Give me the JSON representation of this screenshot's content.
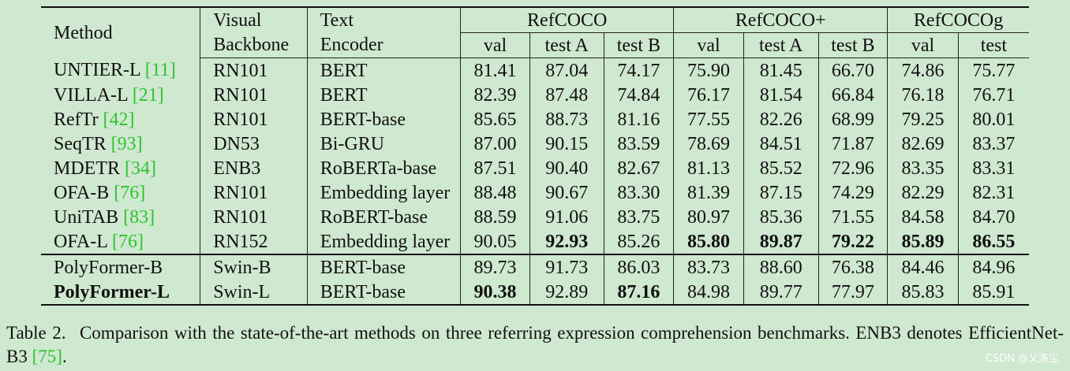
{
  "table": {
    "headers": {
      "method": "Method",
      "visual_line1": "Visual",
      "visual_line2": "Backbone",
      "text_line1": "Text",
      "text_line2": "Encoder",
      "groups": [
        "RefCOCO",
        "RefCOCO+",
        "RefCOCOg"
      ],
      "subcols": [
        "val",
        "test A",
        "test B",
        "val",
        "test A",
        "test B",
        "val",
        "test"
      ]
    },
    "rows": [
      {
        "method": "UNTIER-L",
        "ref": "11",
        "backbone": "RN101",
        "encoder": "BERT",
        "values": [
          "81.41",
          "87.04",
          "74.17",
          "75.90",
          "81.45",
          "66.70",
          "74.86",
          "75.77"
        ]
      },
      {
        "method": "VILLA-L",
        "ref": "21",
        "backbone": "RN101",
        "encoder": "BERT",
        "values": [
          "82.39",
          "87.48",
          "74.84",
          "76.17",
          "81.54",
          "66.84",
          "76.18",
          "76.71"
        ]
      },
      {
        "method": "RefTr",
        "ref": "42",
        "backbone": "RN101",
        "encoder": "BERT-base",
        "values": [
          "85.65",
          "88.73",
          "81.16",
          "77.55",
          "82.26",
          "68.99",
          "79.25",
          "80.01"
        ]
      },
      {
        "method": "SeqTR",
        "ref": "93",
        "backbone": "DN53",
        "encoder": "Bi-GRU",
        "values": [
          "87.00",
          "90.15",
          "83.59",
          "78.69",
          "84.51",
          "71.87",
          "82.69",
          "83.37"
        ]
      },
      {
        "method": "MDETR",
        "ref": "34",
        "backbone": "ENB3",
        "encoder": "RoBERTa-base",
        "values": [
          "87.51",
          "90.40",
          "82.67",
          "81.13",
          "85.52",
          "72.96",
          "83.35",
          "83.31"
        ]
      },
      {
        "method": "OFA-B",
        "ref": "76",
        "backbone": "RN101",
        "encoder": "Embedding layer",
        "values": [
          "88.48",
          "90.67",
          "83.30",
          "81.39",
          "87.15",
          "74.29",
          "82.29",
          "82.31"
        ]
      },
      {
        "method": "UniTAB",
        "ref": "83",
        "backbone": "RN101",
        "encoder": "RoBERT-base",
        "values": [
          "88.59",
          "91.06",
          "83.75",
          "80.97",
          "85.36",
          "71.55",
          "84.58",
          "84.70"
        ]
      },
      {
        "method": "OFA-L",
        "ref": "76",
        "backbone": "RN152",
        "encoder": "Embedding layer",
        "values": [
          "90.05",
          "92.93",
          "85.26",
          "85.80",
          "89.87",
          "79.22",
          "85.89",
          "86.55"
        ]
      },
      {
        "method": "PolyFormer-B",
        "ref": "",
        "backbone": "Swin-B",
        "encoder": "BERT-base",
        "values": [
          "89.73",
          "91.73",
          "86.03",
          "83.73",
          "88.60",
          "76.38",
          "84.46",
          "84.96"
        ]
      },
      {
        "method": "PolyFormer-L",
        "ref": "",
        "backbone": "Swin-L",
        "encoder": "BERT-base",
        "values": [
          "90.38",
          "92.89",
          "87.16",
          "84.98",
          "89.77",
          "77.97",
          "85.83",
          "85.91"
        ]
      }
    ]
  },
  "caption": {
    "label": "Table 2.",
    "text": "Comparison with the state-of-the-art methods on three referring expression comprehension benchmarks. ENB3 denotes EfficientNet-B3 ",
    "ref": "75",
    "end": "."
  },
  "watermark": "CSDN @乂洛尘",
  "colors": {
    "background": "#cfe8d0",
    "citation": "#2fc32f",
    "text": "#111111"
  }
}
